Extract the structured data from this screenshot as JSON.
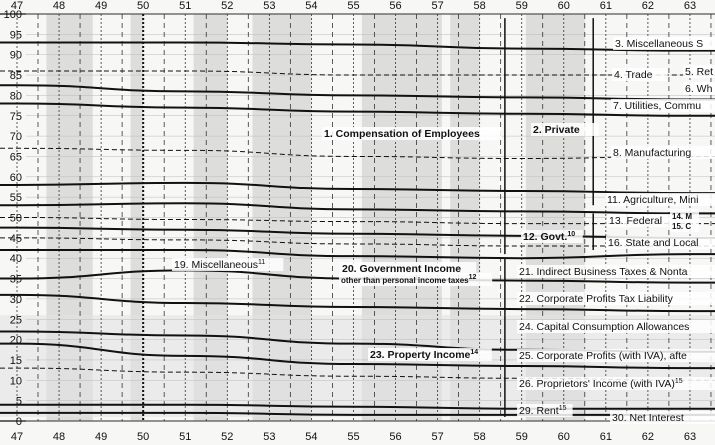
{
  "chart_data": {
    "type": "area",
    "x_ticks": [
      "47",
      "48",
      "49",
      "50",
      "51",
      "52",
      "53",
      "54",
      "55",
      "56",
      "57",
      "58",
      "59",
      "60",
      "61",
      "62",
      "63"
    ],
    "y_ticks": [
      "0",
      "5",
      "10",
      "15",
      "20",
      "25",
      "30",
      "35",
      "40",
      "45",
      "50",
      "55",
      "60",
      "65",
      "70",
      "75",
      "80",
      "85",
      "90",
      "95",
      "100"
    ],
    "xlim": [
      47,
      63.7
    ],
    "ylim": [
      0,
      100
    ],
    "grid": true,
    "x": [
      47,
      51,
      55,
      59,
      63
    ],
    "boundaries": [
      {
        "style": "solid",
        "values": [
          93,
          93,
          92.5,
          91.5,
          91
        ]
      },
      {
        "style": "dashed",
        "values": [
          86,
          86,
          85,
          85,
          85
        ]
      },
      {
        "style": "solid",
        "values": [
          82.5,
          81,
          80,
          79.5,
          79
        ]
      },
      {
        "style": "solid",
        "values": [
          78,
          77,
          76,
          75.5,
          75
        ]
      },
      {
        "style": "dashed",
        "values": [
          67,
          66.5,
          65,
          64.5,
          65
        ]
      },
      {
        "style": "solid",
        "values": [
          58,
          58.5,
          57,
          56.5,
          56
        ]
      },
      {
        "style": "solid",
        "values": [
          53,
          53.5,
          52,
          51.5,
          51
        ]
      },
      {
        "style": "dashed",
        "values": [
          50,
          49.5,
          49,
          48.5,
          48.5
        ]
      },
      {
        "style": "solid",
        "values": [
          47.5,
          47,
          46,
          45.5,
          45
        ]
      },
      {
        "style": "dashed",
        "values": [
          45,
          44.5,
          43.5,
          43,
          43
        ]
      },
      {
        "style": "solid",
        "values": [
          42,
          42,
          40.5,
          40,
          41
        ]
      },
      {
        "style": "solid",
        "values": [
          35,
          37,
          35,
          34.5,
          34
        ]
      },
      {
        "style": "solid",
        "values": [
          31,
          29,
          28,
          27.5,
          27
        ]
      },
      {
        "style": "solid",
        "values": [
          22,
          21,
          19,
          17.5,
          17
        ]
      },
      {
        "style": "solid",
        "values": [
          19,
          16,
          14,
          13.5,
          13
        ]
      },
      {
        "style": "dashed",
        "values": [
          13,
          12,
          11,
          10.5,
          10
        ]
      },
      {
        "style": "solid",
        "values": [
          4,
          4,
          3.5,
          3,
          3
        ]
      },
      {
        "style": "solid",
        "values": [
          2,
          2,
          1.5,
          1.5,
          1.5
        ]
      }
    ],
    "labels": [
      "3. Miscellaneous S",
      "4. Trade",
      "5. Ret",
      "6. Wh",
      "7. Utilities, Commu",
      "1. Compensation of Employees",
      "2. Private",
      "8. Manufacturing",
      "11. Agriculture, Mini",
      "13. Federal",
      "14. M",
      "15. C",
      "12. Govt.",
      "16. State and Local",
      "19. Miscellaneous",
      "20. Government Income",
      "other than personal income taxes",
      "21. Indirect Business Taxes & Nonta",
      "22. Corporate Profits Tax Liability",
      "24. Capital Consumption Allowances",
      "23. Property Income",
      "25. Corporate Profits (with IVA), afte",
      "26. Proprietors' Income (with IVA)",
      "29. Rent",
      "30. Net Interest"
    ],
    "footnotes": {
      "12. Govt.": "10",
      "19. Miscellaneous": "11",
      "other than personal income taxes": "12",
      "23. Property Income": "14",
      "26. Proprietors' Income (with IVA)": "15",
      "29. Rent": "15"
    }
  }
}
